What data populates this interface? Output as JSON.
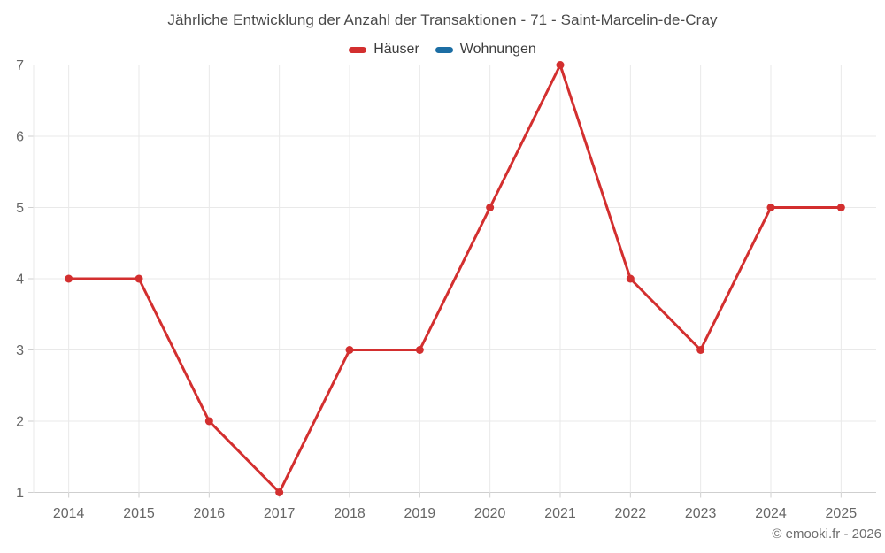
{
  "footer": {
    "copyright": "© emooki.fr - 2026"
  },
  "colors": {
    "grid": "#e9e9e9",
    "axis": "#cfcfcf",
    "tick_label": "#666666",
    "title_text": "#4a4a4a",
    "background": "#ffffff"
  },
  "chart_data": {
    "type": "line",
    "title": "Jährliche Entwicklung der Anzahl der Transaktionen - 71 - Saint-Marcelin-de-Cray",
    "categories": [
      "2014",
      "2015",
      "2016",
      "2017",
      "2018",
      "2019",
      "2020",
      "2021",
      "2022",
      "2023",
      "2024",
      "2025"
    ],
    "series": [
      {
        "name": "Häuser",
        "color": "#d32f2f",
        "values": [
          4,
          4,
          2,
          1,
          3,
          3,
          5,
          7,
          4,
          3,
          5,
          5
        ]
      },
      {
        "name": "Wohnungen",
        "color": "#1c6ea4",
        "values": []
      }
    ],
    "xlabel": "",
    "ylabel": "",
    "ylim": [
      1,
      7
    ],
    "yticks": [
      1,
      2,
      3,
      4,
      5,
      6,
      7
    ],
    "grid": true,
    "legend_position": "top"
  }
}
